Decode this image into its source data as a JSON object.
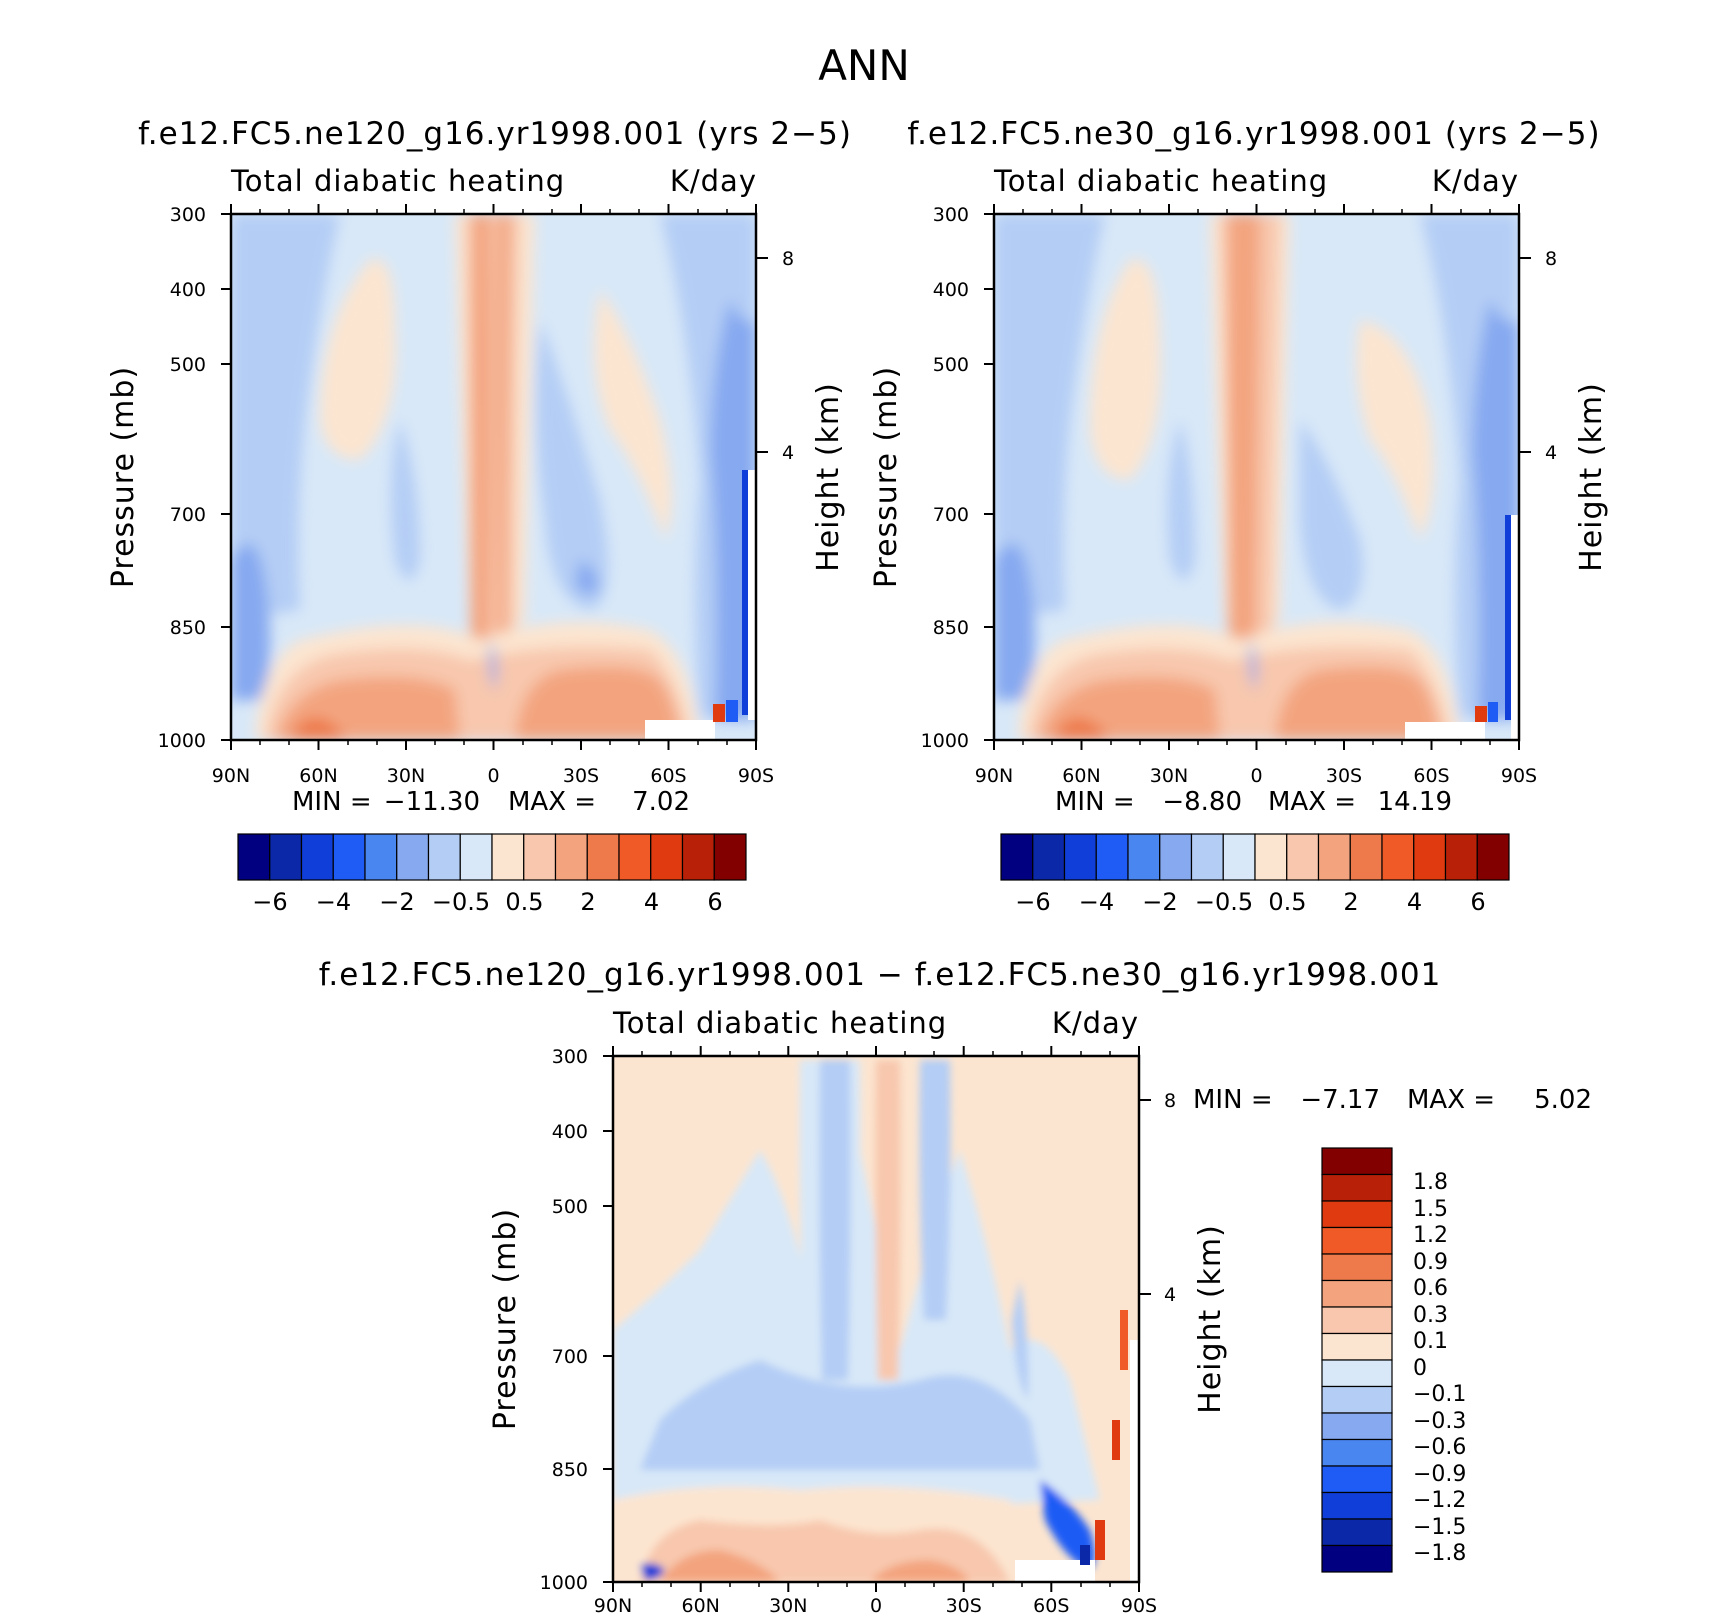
{
  "figure_title": "ANN",
  "chart_data": [
    {
      "type": "heatmap",
      "id": "ne120",
      "title": "f.e12.FC5.ne120_g16.yr1998.001 (yrs 2−5)",
      "subtitle_left": "Total diabatic heating",
      "subtitle_right": "K/day",
      "xlabel": "",
      "ylabel": "Pressure (mb)",
      "ylabel_right": "Height (km)",
      "x_ticks": [
        "90N",
        "60N",
        "30N",
        "0",
        "30S",
        "60S",
        "90S"
      ],
      "y_ticks": [
        "300",
        "400",
        "500",
        "700",
        "850",
        "1000"
      ],
      "y_ticks_right": [
        "8",
        "4"
      ],
      "stats": {
        "min_label": "MIN =",
        "min": "−11.30",
        "max_label": "MAX =",
        "max": "7.02"
      },
      "colorbar": {
        "orientation": "horizontal",
        "colors": [
          "#000080",
          "#0a28a8",
          "#0f3ed8",
          "#1e5cf5",
          "#4a86f0",
          "#86a9f0",
          "#b4cdf5",
          "#d8e8f8",
          "#fce5d0",
          "#f8c7ad",
          "#f3a47f",
          "#ee7a4c",
          "#f05a26",
          "#e03b10",
          "#b82108",
          "#820000"
        ],
        "labels": [
          "−6",
          "−4",
          "−2",
          "−0.5",
          "0.5",
          "2",
          "4",
          "6"
        ]
      }
    },
    {
      "type": "heatmap",
      "id": "ne30",
      "title": "f.e12.FC5.ne30_g16.yr1998.001 (yrs 2−5)",
      "subtitle_left": "Total diabatic heating",
      "subtitle_right": "K/day",
      "xlabel": "",
      "ylabel": "Pressure (mb)",
      "ylabel_right": "Height (km)",
      "x_ticks": [
        "90N",
        "60N",
        "30N",
        "0",
        "30S",
        "60S",
        "90S"
      ],
      "y_ticks": [
        "300",
        "400",
        "500",
        "700",
        "850",
        "1000"
      ],
      "y_ticks_right": [
        "8",
        "4"
      ],
      "stats": {
        "min_label": "MIN =",
        "min": "−8.80",
        "max_label": "MAX =",
        "max": "14.19"
      },
      "colorbar": {
        "orientation": "horizontal",
        "colors": [
          "#000080",
          "#0a28a8",
          "#0f3ed8",
          "#1e5cf5",
          "#4a86f0",
          "#86a9f0",
          "#b4cdf5",
          "#d8e8f8",
          "#fce5d0",
          "#f8c7ad",
          "#f3a47f",
          "#ee7a4c",
          "#f05a26",
          "#e03b10",
          "#b82108",
          "#820000"
        ],
        "labels": [
          "−6",
          "−4",
          "−2",
          "−0.5",
          "0.5",
          "2",
          "4",
          "6"
        ]
      }
    },
    {
      "type": "heatmap",
      "id": "diff",
      "title": "f.e12.FC5.ne120_g16.yr1998.001 − f.e12.FC5.ne30_g16.yr1998.001",
      "subtitle_left": "Total diabatic heating",
      "subtitle_right": "K/day",
      "xlabel": "",
      "ylabel": "Pressure (mb)",
      "ylabel_right": "Height (km)",
      "x_ticks": [
        "90N",
        "60N",
        "30N",
        "0",
        "30S",
        "60S",
        "90S"
      ],
      "y_ticks": [
        "300",
        "400",
        "500",
        "700",
        "850",
        "1000"
      ],
      "y_ticks_right": [
        "8",
        "4"
      ],
      "stats": {
        "min_label": "MIN =",
        "min": "−7.17",
        "max_label": "MAX =",
        "max": "5.02"
      },
      "colorbar": {
        "orientation": "vertical",
        "colors": [
          "#820000",
          "#b82108",
          "#e03b10",
          "#f05a26",
          "#ee7a4c",
          "#f3a47f",
          "#f8c7ad",
          "#fce5d0",
          "#d8e8f8",
          "#b4cdf5",
          "#86a9f0",
          "#4a86f0",
          "#1e5cf5",
          "#0f3ed8",
          "#0a28a8",
          "#000080"
        ],
        "labels": [
          "1.8",
          "1.5",
          "1.2",
          "0.9",
          "0.6",
          "0.3",
          "0.1",
          "0",
          "−0.1",
          "−0.3",
          "−0.6",
          "−0.9",
          "−1.2",
          "−1.5",
          "−1.8"
        ]
      }
    }
  ]
}
